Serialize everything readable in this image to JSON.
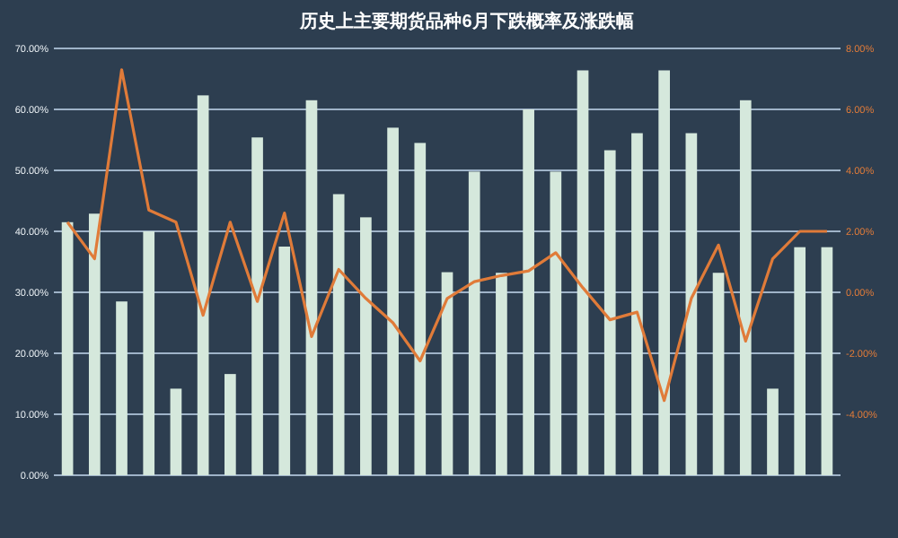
{
  "chart_data": {
    "type": "bar",
    "title": "历史上主要期货品种6月下跌概率及涨跌幅",
    "categories": [
      null,
      null,
      null,
      null,
      null,
      null,
      null,
      null,
      null,
      null,
      null,
      null,
      null,
      null,
      null,
      null,
      null,
      null,
      null,
      null,
      null,
      null,
      null,
      null,
      null,
      null,
      null,
      null,
      null
    ],
    "series": [
      {
        "color": "#d5e8dc",
        "values": [
          41.5,
          42.9,
          28.5,
          40.0,
          14.2,
          62.3,
          16.6,
          55.4,
          37.5,
          61.5,
          46.1,
          42.3,
          57.0,
          54.5,
          33.3,
          49.8,
          33.2,
          60.0,
          49.8,
          66.4,
          53.3,
          56.1,
          66.4,
          56.1,
          33.2,
          61.5,
          14.2,
          37.4,
          37.4
        ]
      },
      {
        "type": "line",
        "axis": "y2",
        "color": "#e07b39",
        "values": [
          2.3,
          1.1,
          7.3,
          2.7,
          2.3,
          -0.75,
          2.3,
          -0.3,
          2.6,
          -1.45,
          0.75,
          -0.2,
          -1.0,
          -2.25,
          -0.2,
          0.35,
          0.55,
          0.7,
          1.3,
          0.15,
          -0.9,
          -0.65,
          -3.55,
          -0.2,
          1.55,
          -1.6,
          1.1,
          2.0,
          2.0
        ]
      }
    ],
    "ylim": [
      0,
      70
    ],
    "yticks": [
      {
        "value": 0,
        "label": "0.00%"
      },
      {
        "value": 10,
        "label": "10.00%"
      },
      {
        "value": 20,
        "label": "20.00%"
      },
      {
        "value": 30,
        "label": "30.00%"
      },
      {
        "value": 40,
        "label": "40.00%"
      },
      {
        "value": 50,
        "label": "50.00%"
      },
      {
        "value": 60,
        "label": "60.00%"
      },
      {
        "value": 70,
        "label": "70.00%"
      }
    ],
    "y2lim": [
      -6,
      8
    ],
    "y2ticks": [
      {
        "value": -4,
        "label": "-4.00%"
      },
      {
        "value": -2,
        "label": "-2.00%"
      },
      {
        "value": 0,
        "label": "0.00%"
      },
      {
        "value": 2,
        "label": "2.00%"
      },
      {
        "value": 4,
        "label": "4.00%"
      },
      {
        "value": 6,
        "label": "6.00%"
      },
      {
        "value": 8,
        "label": "8.00%"
      }
    ],
    "grid": "y",
    "marker": "none",
    "line_style": "solid"
  }
}
